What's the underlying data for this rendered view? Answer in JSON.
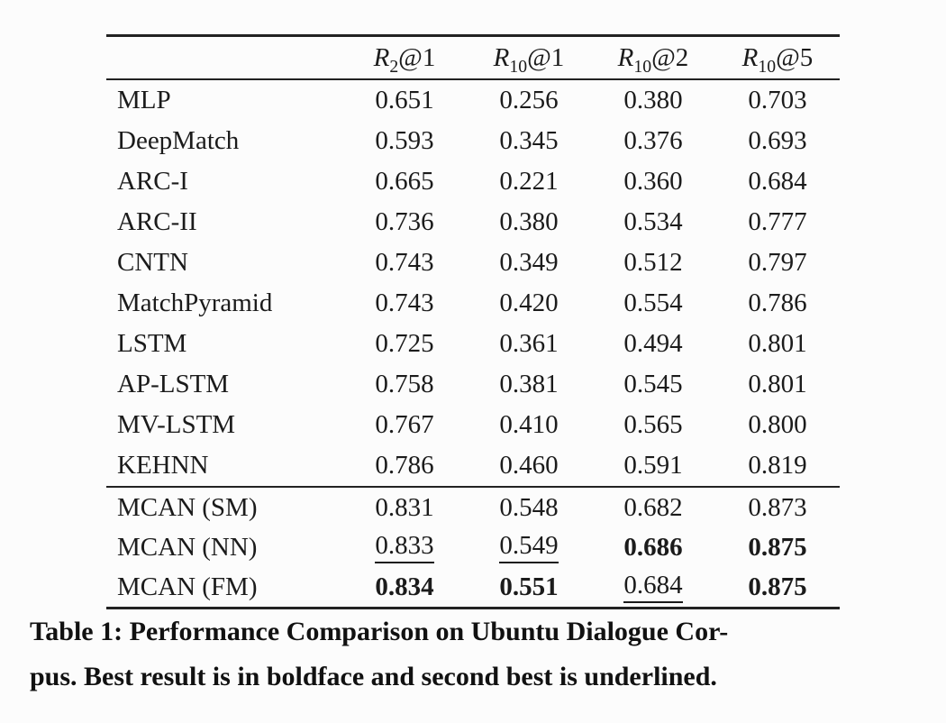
{
  "colors": {
    "background": "#fcfcfc",
    "text": "#1b1b1b",
    "rule": "#222222"
  },
  "table": {
    "headers": [
      {
        "letter": "R",
        "sub": "2",
        "suffix": "@1"
      },
      {
        "letter": "R",
        "sub": "10",
        "suffix": "@1"
      },
      {
        "letter": "R",
        "sub": "10",
        "suffix": "@2"
      },
      {
        "letter": "R",
        "sub": "10",
        "suffix": "@5"
      }
    ],
    "rows": [
      {
        "model": "MLP",
        "values": [
          "0.651",
          "0.256",
          "0.380",
          "0.703"
        ],
        "styles": [
          "",
          "",
          "",
          ""
        ]
      },
      {
        "model": "DeepMatch",
        "values": [
          "0.593",
          "0.345",
          "0.376",
          "0.693"
        ],
        "styles": [
          "",
          "",
          "",
          ""
        ]
      },
      {
        "model": "ARC-I",
        "values": [
          "0.665",
          "0.221",
          "0.360",
          "0.684"
        ],
        "styles": [
          "",
          "",
          "",
          ""
        ]
      },
      {
        "model": "ARC-II",
        "values": [
          "0.736",
          "0.380",
          "0.534",
          "0.777"
        ],
        "styles": [
          "",
          "",
          "",
          ""
        ]
      },
      {
        "model": "CNTN",
        "values": [
          "0.743",
          "0.349",
          "0.512",
          "0.797"
        ],
        "styles": [
          "",
          "",
          "",
          ""
        ]
      },
      {
        "model": "MatchPyramid",
        "values": [
          "0.743",
          "0.420",
          "0.554",
          "0.786"
        ],
        "styles": [
          "",
          "",
          "",
          ""
        ]
      },
      {
        "model": "LSTM",
        "values": [
          "0.725",
          "0.361",
          "0.494",
          "0.801"
        ],
        "styles": [
          "",
          "",
          "",
          ""
        ]
      },
      {
        "model": "AP-LSTM",
        "values": [
          "0.758",
          "0.381",
          "0.545",
          "0.801"
        ],
        "styles": [
          "",
          "",
          "",
          ""
        ]
      },
      {
        "model": "MV-LSTM",
        "values": [
          "0.767",
          "0.410",
          "0.565",
          "0.800"
        ],
        "styles": [
          "",
          "",
          "",
          ""
        ]
      },
      {
        "model": "KEHNN",
        "values": [
          "0.786",
          "0.460",
          "0.591",
          "0.819"
        ],
        "styles": [
          "",
          "",
          "",
          ""
        ]
      },
      {
        "model": "MCAN (SM)",
        "values": [
          "0.831",
          "0.548",
          "0.682",
          "0.873"
        ],
        "styles": [
          "",
          "",
          "",
          ""
        ]
      },
      {
        "model": "MCAN (NN)",
        "values": [
          "0.833",
          "0.549",
          "0.686",
          "0.875"
        ],
        "styles": [
          "underline",
          "underline",
          "bold",
          "bold"
        ]
      },
      {
        "model": "MCAN (FM)",
        "values": [
          "0.834",
          "0.551",
          "0.684",
          "0.875"
        ],
        "styles": [
          "bold",
          "bold",
          "underline",
          "bold"
        ]
      }
    ]
  },
  "caption": {
    "line1": "Table 1: Performance Comparison on Ubuntu Dialogue Cor-",
    "line2": "pus. Best result is in boldface and second best is underlined."
  }
}
